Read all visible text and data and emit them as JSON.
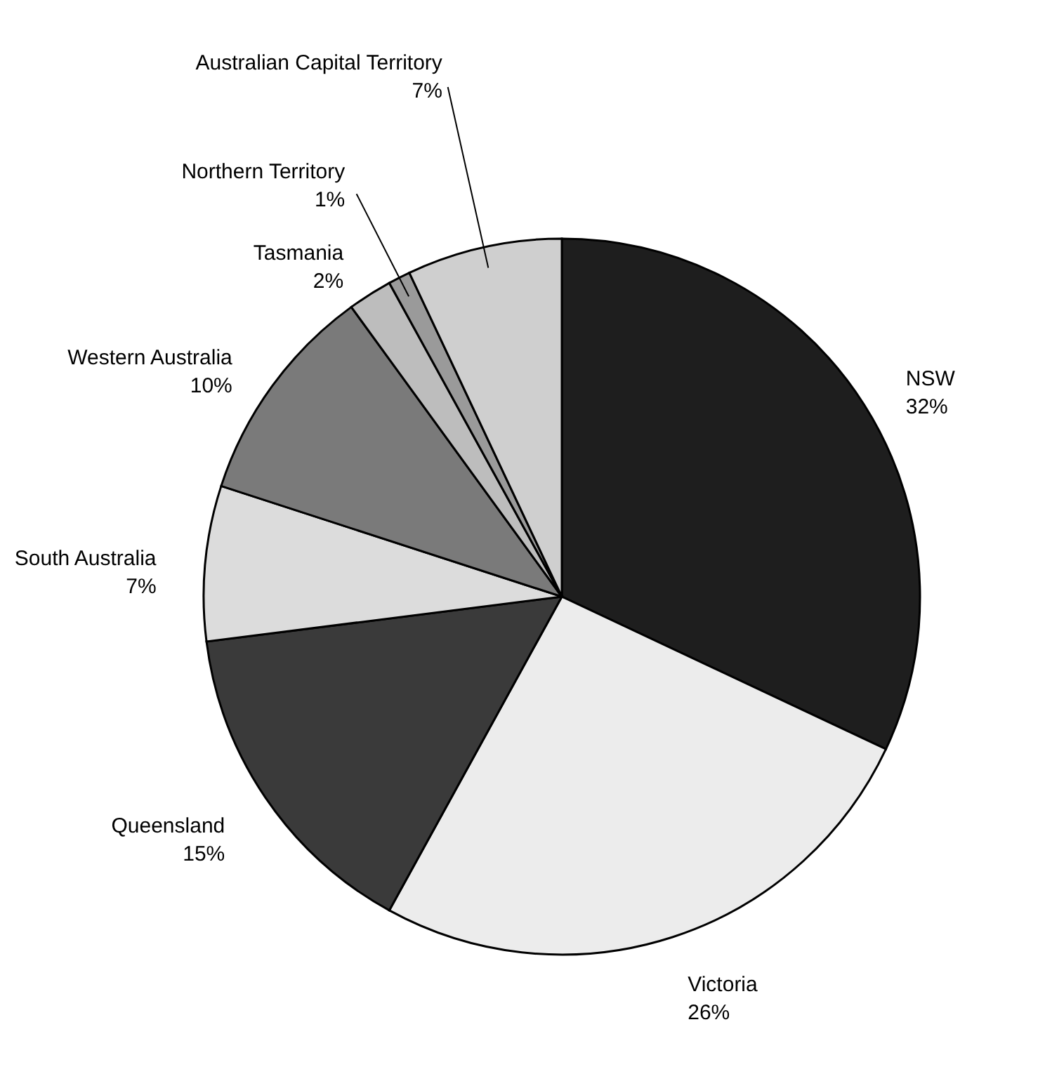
{
  "chart_data": {
    "type": "pie",
    "categories": [
      "NSW",
      "Victoria",
      "Queensland",
      "South Australia",
      "Western Australia",
      "Tasmania",
      "Northern Territory",
      "Australian Capital Territory"
    ],
    "values": [
      32,
      26,
      15,
      7,
      10,
      2,
      1,
      7
    ],
    "value_labels": [
      "32%",
      "26%",
      "15%",
      "7%",
      "10%",
      "2%",
      "1%",
      "7%"
    ],
    "colors": [
      "#1e1e1e",
      "#ececec",
      "#3a3a3a",
      "#dcdcdc",
      "#7a7a7a",
      "#bdbdbd",
      "#9a9a9a",
      "#cfcfcf"
    ]
  }
}
